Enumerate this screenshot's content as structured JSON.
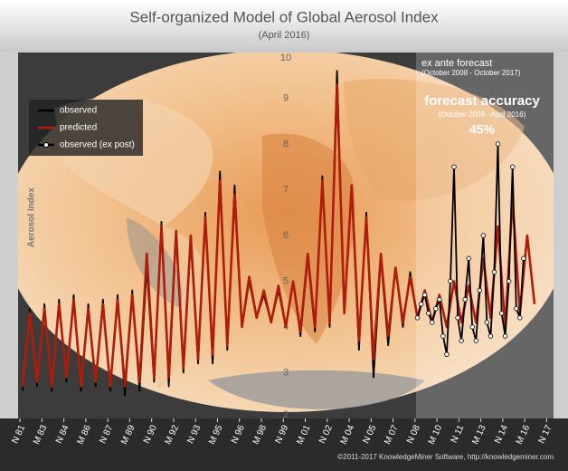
{
  "chart_data": {
    "type": "line",
    "title": "Self-organized Model of Global Aerosol Index",
    "subtitle": "(April 2016)",
    "y_label": "Aerosol Index",
    "annotations": {
      "ex_ante": "ex ante forecast",
      "ex_ante_period": "(October 2008 - October 2017)",
      "accuracy_title": "forecast accuracy",
      "accuracy_period": "(October 2008 - April 2016)",
      "accuracy_value": "45%",
      "credit": "©2011-2017 KnowledgeMiner Software, http://knowledgeminer.com"
    },
    "xlim": [
      1981.7,
      2018.3
    ],
    "ylim": [
      2,
      10
    ],
    "yticks": [
      2,
      3,
      4,
      5,
      6,
      7,
      8,
      9,
      10
    ],
    "xticks": [
      {
        "value": 1981.83,
        "label": "N 81"
      },
      {
        "value": 1983.33,
        "label": "M 83"
      },
      {
        "value": 1984.83,
        "label": "N 84"
      },
      {
        "value": 1986.33,
        "label": "M 86"
      },
      {
        "value": 1987.83,
        "label": "N 87"
      },
      {
        "value": 1989.33,
        "label": "M 89"
      },
      {
        "value": 1990.83,
        "label": "N 90"
      },
      {
        "value": 1992.33,
        "label": "M 92"
      },
      {
        "value": 1993.83,
        "label": "N 93"
      },
      {
        "value": 1995.33,
        "label": "M 95"
      },
      {
        "value": 1996.83,
        "label": "N 96"
      },
      {
        "value": 1998.33,
        "label": "M 98"
      },
      {
        "value": 1999.83,
        "label": "N 99"
      },
      {
        "value": 2001.33,
        "label": "M 01"
      },
      {
        "value": 2002.83,
        "label": "N 02"
      },
      {
        "value": 2004.33,
        "label": "M 04"
      },
      {
        "value": 2005.83,
        "label": "N 05"
      },
      {
        "value": 2007.33,
        "label": "M 07"
      },
      {
        "value": 2008.83,
        "label": "N 08"
      },
      {
        "value": 2010.33,
        "label": "M 10"
      },
      {
        "value": 2011.83,
        "label": "N 11"
      },
      {
        "value": 2013.33,
        "label": "M 13"
      },
      {
        "value": 2014.83,
        "label": "N 14"
      },
      {
        "value": 2016.33,
        "label": "M 16"
      },
      {
        "value": 2017.83,
        "label": "N 17"
      }
    ],
    "grid": false,
    "legend": "upper left",
    "series": [
      {
        "name": "observed",
        "color": "#000000",
        "markers": false,
        "x": [
          1982.0,
          1982.5,
          1983.0,
          1983.5,
          1984.0,
          1984.5,
          1985.0,
          1985.5,
          1986.0,
          1986.5,
          1987.0,
          1987.5,
          1988.0,
          1988.5,
          1989.0,
          1989.5,
          1990.0,
          1990.5,
          1991.0,
          1991.5,
          1992.0,
          1992.5,
          1993.0,
          1993.5,
          1994.0,
          1994.5,
          1995.0,
          1995.5,
          1996.0,
          1996.5,
          1997.0,
          1997.5,
          1998.0,
          1998.5,
          1999.0,
          1999.5,
          2000.0,
          2000.5,
          2001.0,
          2001.5,
          2002.0,
          2002.5,
          2003.0,
          2003.5,
          2004.0,
          2004.5,
          2005.0,
          2005.5,
          2006.0,
          2006.5,
          2007.0,
          2007.5,
          2008.0,
          2008.5,
          2009.0
        ],
        "values": [
          2.6,
          4.4,
          2.7,
          4.5,
          2.6,
          4.6,
          2.8,
          4.7,
          2.6,
          4.5,
          2.7,
          4.6,
          2.6,
          4.7,
          2.5,
          4.8,
          2.6,
          5.3,
          2.8,
          6.3,
          2.7,
          6.0,
          3.0,
          5.9,
          3.2,
          6.5,
          3.2,
          7.4,
          3.5,
          7.1,
          4.0,
          5.0,
          4.2,
          4.7,
          4.1,
          4.8,
          4.0,
          5.0,
          3.8,
          5.5,
          3.9,
          7.3,
          4.0,
          9.6,
          4.3,
          7.0,
          3.5,
          6.5,
          2.9,
          5.5,
          3.6,
          5.3,
          4.0,
          5.2,
          4.2
        ]
      },
      {
        "name": "predicted",
        "color": "#b01c0a",
        "markers": false,
        "x": [
          1982.0,
          1982.5,
          1983.0,
          1983.5,
          1984.0,
          1984.5,
          1985.0,
          1985.5,
          1986.0,
          1986.5,
          1987.0,
          1987.5,
          1988.0,
          1988.5,
          1989.0,
          1989.5,
          1990.0,
          1990.5,
          1991.0,
          1991.5,
          1992.0,
          1992.5,
          1993.0,
          1993.5,
          1994.0,
          1994.5,
          1995.0,
          1995.5,
          1996.0,
          1996.5,
          1997.0,
          1997.5,
          1998.0,
          1998.5,
          1999.0,
          1999.5,
          2000.0,
          2000.5,
          2001.0,
          2001.5,
          2002.0,
          2002.5,
          2003.0,
          2003.5,
          2004.0,
          2004.5,
          2005.0,
          2005.5,
          2006.0,
          2006.5,
          2007.0,
          2007.5,
          2008.0,
          2008.5,
          2009.0,
          2009.5,
          2010.0,
          2010.5,
          2011.0,
          2011.5,
          2012.0,
          2012.5,
          2013.0,
          2013.5,
          2014.0,
          2014.5,
          2015.0,
          2015.5,
          2016.0,
          2016.5,
          2017.0
        ],
        "values": [
          2.7,
          4.3,
          2.8,
          4.4,
          2.7,
          4.5,
          2.9,
          4.6,
          2.7,
          4.4,
          2.8,
          4.5,
          2.7,
          4.6,
          2.7,
          4.7,
          2.8,
          5.6,
          2.9,
          6.2,
          2.9,
          6.1,
          3.1,
          6.0,
          3.3,
          6.4,
          3.4,
          7.2,
          3.6,
          6.9,
          4.0,
          5.1,
          4.2,
          4.8,
          4.1,
          4.9,
          4.0,
          5.0,
          3.9,
          5.6,
          4.0,
          7.2,
          4.1,
          9.3,
          4.3,
          7.1,
          3.7,
          6.4,
          3.3,
          5.6,
          3.8,
          5.3,
          4.1,
          5.1,
          4.2,
          4.8,
          4.1,
          4.7,
          4.0,
          5.0,
          4.1,
          4.9,
          4.1,
          5.5,
          4.2,
          6.2,
          4.0,
          6.8,
          4.3,
          6.0,
          4.5
        ]
      },
      {
        "name": "observed (ex post)",
        "color": "#000000",
        "markers": true,
        "x": [
          2009.0,
          2009.25,
          2009.5,
          2009.75,
          2010.0,
          2010.25,
          2010.5,
          2010.75,
          2011.0,
          2011.25,
          2011.5,
          2011.75,
          2012.0,
          2012.25,
          2012.5,
          2012.75,
          2013.0,
          2013.25,
          2013.5,
          2013.75,
          2014.0,
          2014.25,
          2014.5,
          2014.75,
          2015.0,
          2015.25,
          2015.5,
          2015.75,
          2016.0,
          2016.25
        ],
        "values": [
          4.2,
          4.5,
          4.7,
          4.3,
          4.1,
          4.4,
          4.6,
          3.8,
          3.4,
          5.0,
          7.5,
          4.2,
          3.7,
          4.6,
          5.5,
          4.0,
          3.7,
          4.8,
          6.0,
          4.1,
          3.8,
          5.2,
          8.0,
          4.3,
          3.8,
          5.0,
          7.5,
          4.4,
          4.2,
          5.5
        ]
      }
    ]
  }
}
